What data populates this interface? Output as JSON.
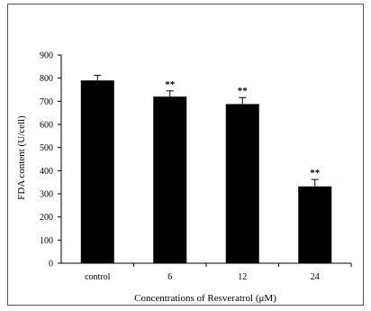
{
  "chart_data": {
    "type": "bar",
    "title": "",
    "xlabel": "Concentrations of Resveratrol (μM)",
    "ylabel": "FDA content (U/cell)",
    "categories": [
      "control",
      "6",
      "12",
      "24"
    ],
    "values": [
      790,
      720,
      688,
      332
    ],
    "errors": [
      22,
      25,
      28,
      30
    ],
    "annotations": [
      "",
      "**",
      "**",
      "**"
    ],
    "ylim": [
      0,
      900
    ],
    "yticks": [
      0,
      100,
      200,
      300,
      400,
      500,
      600,
      700,
      800,
      900
    ],
    "grid": false,
    "legend": "none",
    "colors": {
      "bar": "#000000",
      "axis": "#000000",
      "frame": "#555555"
    }
  }
}
